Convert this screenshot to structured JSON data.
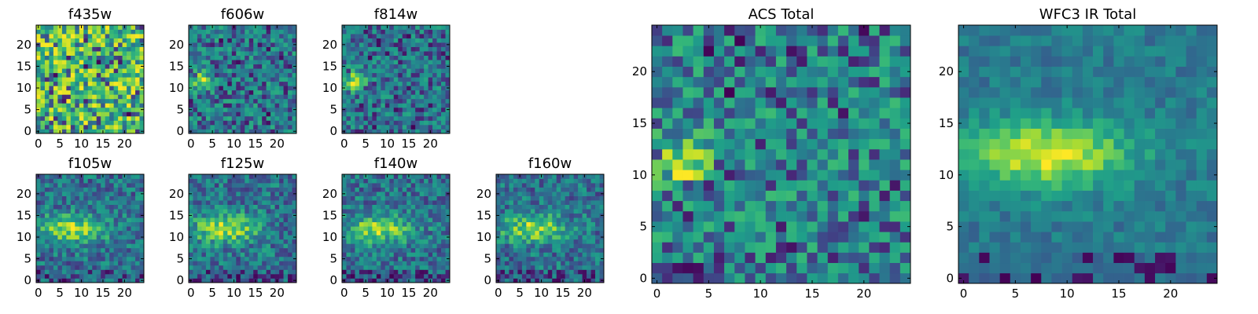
{
  "colormap": "viridis",
  "chart_data": [
    {
      "type": "heatmap",
      "title": "f435w",
      "xticks": [
        0,
        5,
        10,
        15,
        20
      ],
      "yticks": [
        0,
        5,
        10,
        15,
        20
      ],
      "xlim": [
        -0.5,
        24.5
      ],
      "ylim": [
        -0.5,
        24.5
      ],
      "grid": false,
      "size": 25,
      "pattern": "noise",
      "seed": 11
    },
    {
      "type": "heatmap",
      "title": "f606w",
      "xticks": [
        0,
        5,
        10,
        15,
        20
      ],
      "yticks": [
        0,
        5,
        10,
        15,
        20
      ],
      "xlim": [
        -0.5,
        24.5
      ],
      "ylim": [
        -0.5,
        24.5
      ],
      "grid": false,
      "size": 25,
      "pattern": "noise_blob",
      "seed": 23
    },
    {
      "type": "heatmap",
      "title": "f814w",
      "xticks": [
        0,
        5,
        10,
        15,
        20
      ],
      "yticks": [
        0,
        5,
        10,
        15,
        20
      ],
      "xlim": [
        -0.5,
        24.5
      ],
      "ylim": [
        -0.5,
        24.5
      ],
      "grid": false,
      "size": 25,
      "pattern": "noise_blob",
      "seed": 37
    },
    {
      "type": "heatmap",
      "title": "f105w",
      "xticks": [
        0,
        5,
        10,
        15,
        20
      ],
      "yticks": [
        0,
        5,
        10,
        15,
        20
      ],
      "xlim": [
        -0.5,
        24.5
      ],
      "ylim": [
        -0.5,
        24.5
      ],
      "grid": false,
      "size": 25,
      "pattern": "galaxy",
      "seed": 41
    },
    {
      "type": "heatmap",
      "title": "f125w",
      "xticks": [
        0,
        5,
        10,
        15,
        20
      ],
      "yticks": [
        0,
        5,
        10,
        15,
        20
      ],
      "xlim": [
        -0.5,
        24.5
      ],
      "ylim": [
        -0.5,
        24.5
      ],
      "grid": false,
      "size": 25,
      "pattern": "galaxy",
      "seed": 53
    },
    {
      "type": "heatmap",
      "title": "f140w",
      "xticks": [
        0,
        5,
        10,
        15,
        20
      ],
      "yticks": [
        0,
        5,
        10,
        15,
        20
      ],
      "xlim": [
        -0.5,
        24.5
      ],
      "ylim": [
        -0.5,
        24.5
      ],
      "grid": false,
      "size": 25,
      "pattern": "galaxy",
      "seed": 67
    },
    {
      "type": "heatmap",
      "title": "f160w",
      "xticks": [
        0,
        5,
        10,
        15,
        20
      ],
      "yticks": [
        0,
        5,
        10,
        15,
        20
      ],
      "xlim": [
        -0.5,
        24.5
      ],
      "ylim": [
        -0.5,
        24.5
      ],
      "grid": false,
      "size": 25,
      "pattern": "galaxy",
      "seed": 79
    },
    {
      "type": "heatmap",
      "title": "ACS Total",
      "xticks": [
        0,
        5,
        10,
        15,
        20
      ],
      "yticks": [
        0,
        5,
        10,
        15,
        20
      ],
      "xlim": [
        -0.5,
        24.5
      ],
      "ylim": [
        -0.5,
        24.5
      ],
      "grid": false,
      "size": 25,
      "pattern": "noise_blob",
      "seed": 97
    },
    {
      "type": "heatmap",
      "title": "WFC3 IR Total",
      "xticks": [
        0,
        5,
        10,
        15,
        20
      ],
      "yticks": [
        0,
        5,
        10,
        15,
        20
      ],
      "xlim": [
        -0.5,
        24.5
      ],
      "ylim": [
        -0.5,
        24.5
      ],
      "grid": false,
      "size": 25,
      "pattern": "galaxy_smooth",
      "seed": 103
    }
  ]
}
